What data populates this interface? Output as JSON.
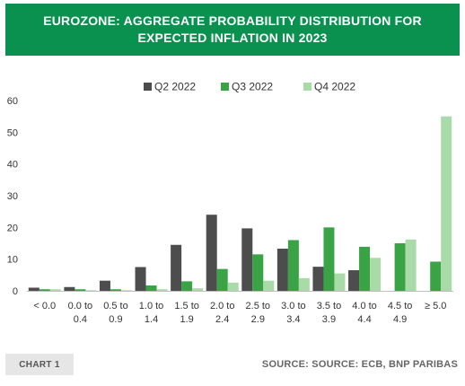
{
  "title": {
    "line1": "EUROZONE: AGGREGATE PROBABILITY DISTRIBUTION FOR",
    "line2": "EXPECTED INFLATION IN 2023"
  },
  "footer": {
    "chart_tag": "CHART 1",
    "source": "SOURCE: SOURCE: ECB, BNP PARIBAS"
  },
  "chart_data": {
    "type": "bar",
    "title": "EUROZONE: AGGREGATE PROBABILITY DISTRIBUTION FOR EXPECTED INFLATION IN 2023",
    "categories": [
      [
        "< 0.0"
      ],
      [
        "0.0 to",
        "0.4"
      ],
      [
        "0.5 to",
        "0.9"
      ],
      [
        "1.0 to",
        "1.4"
      ],
      [
        "1.5 to",
        "1.9"
      ],
      [
        "2.0 to",
        "2.4"
      ],
      [
        "2.5 to",
        "2.9"
      ],
      [
        "3.0 to",
        "3.4"
      ],
      [
        "3.5 to",
        "3.9"
      ],
      [
        "4.0 to",
        "4.4"
      ],
      [
        "4.5 to",
        "4.9"
      ],
      [
        "≥ 5.0"
      ]
    ],
    "series": [
      {
        "name": "Q2 2022",
        "color": "#4d4d4d",
        "values": [
          1.0,
          1.2,
          3.2,
          7.5,
          14.5,
          24.0,
          19.7,
          13.3,
          7.6,
          6.5,
          0,
          0
        ]
      },
      {
        "name": "Q3 2022",
        "color": "#3aa346",
        "values": [
          0.5,
          0.5,
          0.5,
          1.7,
          3.0,
          6.9,
          11.5,
          16.0,
          20.0,
          13.9,
          15.0,
          9.2
        ]
      },
      {
        "name": "Q4 2022",
        "color": "#a9dba9",
        "values": [
          0.5,
          0.2,
          0.2,
          0.5,
          0.8,
          2.6,
          3.2,
          4.0,
          5.5,
          10.4,
          16.2,
          55.0
        ]
      }
    ],
    "ylim": [
      0,
      60
    ],
    "yticks": [
      0,
      10,
      20,
      30,
      40,
      50,
      60
    ],
    "xlabel": "",
    "ylabel": "",
    "grid": false,
    "legend_position": "top-center"
  }
}
